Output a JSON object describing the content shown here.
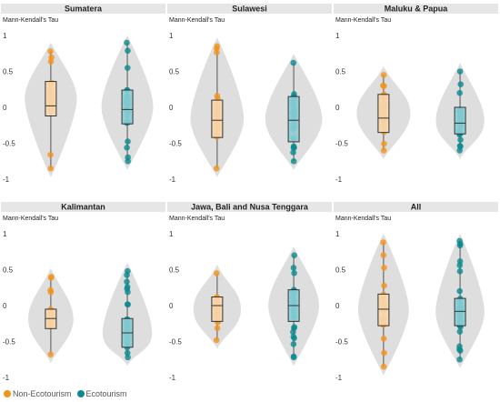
{
  "chart_data": {
    "type": "violin-box-strip",
    "ylabel": "Mann-Kendall's Tau",
    "y_ticks": [
      "1",
      "0.5",
      "0",
      "-0.5",
      "-1"
    ],
    "ylim": [
      -1,
      1
    ],
    "legend": [
      {
        "name": "Non-Ecotourism",
        "color": "#f2941c"
      },
      {
        "name": "Ecotourism",
        "color": "#0b8a8f"
      }
    ],
    "violin_color": "#dedede",
    "box_colors": {
      "Non-Ecotourism": "#f8d7b0",
      "Ecotourism": "#8ccfd6"
    },
    "panels": [
      {
        "title": "Sumatera",
        "groups": [
          {
            "series": "Non-Ecotourism",
            "min": -0.85,
            "q1": -0.12,
            "median": 0.02,
            "q3": 0.36,
            "max": 0.78
          },
          {
            "series": "Ecotourism",
            "min": -0.75,
            "q1": -0.23,
            "median": -0.03,
            "q3": 0.24,
            "max": 0.9
          }
        ]
      },
      {
        "title": "Sulawesi",
        "groups": [
          {
            "series": "Non-Ecotourism",
            "min": -0.85,
            "q1": -0.42,
            "median": -0.18,
            "q3": 0.1,
            "max": 0.85
          },
          {
            "series": "Ecotourism",
            "min": -0.75,
            "q1": -0.48,
            "median": -0.18,
            "q3": 0.15,
            "max": 0.62
          }
        ]
      },
      {
        "title": "Maluku & Papua",
        "groups": [
          {
            "series": "Non-Ecotourism",
            "min": -0.6,
            "q1": -0.35,
            "median": -0.15,
            "q3": 0.18,
            "max": 0.45
          },
          {
            "series": "Ecotourism",
            "min": -0.6,
            "q1": -0.37,
            "median": -0.22,
            "q3": 0.0,
            "max": 0.5
          }
        ]
      },
      {
        "title": "Kalimantan",
        "groups": [
          {
            "series": "Non-Ecotourism",
            "min": -0.68,
            "q1": -0.32,
            "median": -0.18,
            "q3": -0.05,
            "max": 0.4
          },
          {
            "series": "Ecotourism",
            "min": -0.72,
            "q1": -0.58,
            "median": -0.38,
            "q3": -0.18,
            "max": 0.48
          }
        ]
      },
      {
        "title": "Jawa, Bali and Nusa Tenggara",
        "groups": [
          {
            "series": "Non-Ecotourism",
            "min": -0.48,
            "q1": -0.22,
            "median": 0.0,
            "q3": 0.12,
            "max": 0.45
          },
          {
            "series": "Ecotourism",
            "min": -0.72,
            "q1": -0.22,
            "median": 0.0,
            "q3": 0.22,
            "max": 0.7
          }
        ]
      },
      {
        "title": "All",
        "groups": [
          {
            "series": "Non-Ecotourism",
            "min": -0.85,
            "q1": -0.28,
            "median": -0.05,
            "q3": 0.16,
            "max": 0.88
          },
          {
            "series": "Ecotourism",
            "min": -0.75,
            "q1": -0.28,
            "median": -0.08,
            "q3": 0.1,
            "max": 0.9
          }
        ]
      }
    ]
  }
}
